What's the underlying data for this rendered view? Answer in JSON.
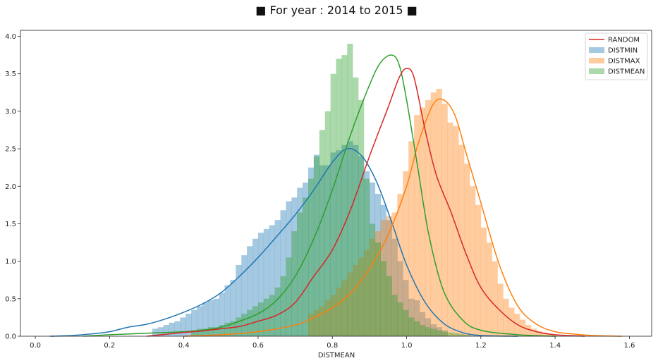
{
  "chart_data": {
    "type": "histogram",
    "title": "■ For year : 2014 to 2015 ■",
    "xlabel": "DISTMEAN",
    "ylabel": "",
    "xlim": [
      -0.04,
      1.66
    ],
    "ylim": [
      0,
      4.08
    ],
    "grid": false,
    "legend_position": "top-right",
    "x_ticks": [
      0.0,
      0.2,
      0.4,
      0.6,
      0.8,
      1.0,
      1.2,
      1.4,
      1.6
    ],
    "x_tick_labels": [
      "0.0",
      "0.2",
      "0.4",
      "0.6",
      "0.8",
      "1.0",
      "1.2",
      "1.4",
      "1.6"
    ],
    "y_ticks": [
      0.0,
      0.5,
      1.0,
      1.5,
      2.0,
      2.5,
      3.0,
      3.5,
      4.0
    ],
    "y_tick_labels": [
      "0.0",
      "0.5",
      "1.0",
      "1.5",
      "2.0",
      "2.5",
      "3.0",
      "3.5",
      "4.0"
    ],
    "legend": [
      {
        "label": "RANDOM",
        "kind": "line"
      },
      {
        "label": "DISTMIN",
        "kind": "patch"
      },
      {
        "label": "DISTMAX",
        "kind": "patch"
      },
      {
        "label": "DISTMEAN",
        "kind": "patch"
      }
    ],
    "series": [
      {
        "name": "DISTMIN",
        "color": "#1f77b4",
        "hist": {
          "edges": [
            0.315,
            0.33,
            0.345,
            0.36,
            0.375,
            0.39,
            0.405,
            0.42,
            0.435,
            0.45,
            0.465,
            0.48,
            0.495,
            0.51,
            0.525,
            0.54,
            0.555,
            0.57,
            0.585,
            0.6,
            0.615,
            0.63,
            0.645,
            0.66,
            0.675,
            0.69,
            0.705,
            0.72,
            0.735,
            0.75,
            0.765,
            0.78,
            0.795,
            0.81,
            0.825,
            0.84,
            0.855,
            0.87,
            0.885,
            0.9,
            0.915,
            0.93,
            0.945,
            0.96,
            0.975,
            0.99,
            1.005,
            1.02,
            1.035,
            1.05,
            1.065,
            1.08,
            1.095,
            1.11
          ],
          "values": [
            0.1,
            0.12,
            0.15,
            0.18,
            0.2,
            0.25,
            0.3,
            0.35,
            0.4,
            0.45,
            0.48,
            0.5,
            0.58,
            0.68,
            0.75,
            0.95,
            1.08,
            1.2,
            1.3,
            1.38,
            1.43,
            1.48,
            1.55,
            1.68,
            1.8,
            1.85,
            1.98,
            2.05,
            2.25,
            2.42,
            2.28,
            2.28,
            2.45,
            2.48,
            2.55,
            2.6,
            2.55,
            2.4,
            2.2,
            2.05,
            1.9,
            1.75,
            1.55,
            1.3,
            1.0,
            0.75,
            0.5,
            0.48,
            0.32,
            0.24,
            0.16,
            0.12,
            0.08
          ]
        },
        "kde": {
          "x": [
            0.04,
            0.1,
            0.15,
            0.2,
            0.25,
            0.3,
            0.35,
            0.4,
            0.45,
            0.5,
            0.55,
            0.6,
            0.65,
            0.7,
            0.75,
            0.8,
            0.84,
            0.88,
            0.92,
            0.96,
            1.0,
            1.05,
            1.1,
            1.15,
            1.2,
            1.3
          ],
          "y": [
            0.0,
            0.01,
            0.03,
            0.06,
            0.12,
            0.16,
            0.23,
            0.32,
            0.43,
            0.58,
            0.8,
            1.05,
            1.33,
            1.62,
            1.95,
            2.32,
            2.5,
            2.4,
            2.05,
            1.52,
            0.95,
            0.45,
            0.17,
            0.05,
            0.01,
            0.0
          ]
        }
      },
      {
        "name": "DISTMAX",
        "color": "#ff7f0e",
        "hist": {
          "edges": [
            0.735,
            0.75,
            0.765,
            0.78,
            0.795,
            0.81,
            0.825,
            0.84,
            0.855,
            0.87,
            0.885,
            0.9,
            0.915,
            0.93,
            0.945,
            0.96,
            0.975,
            0.99,
            1.005,
            1.02,
            1.035,
            1.05,
            1.065,
            1.08,
            1.095,
            1.11,
            1.125,
            1.14,
            1.155,
            1.17,
            1.185,
            1.2,
            1.215,
            1.23,
            1.245,
            1.26,
            1.275,
            1.29,
            1.305,
            1.32,
            1.335,
            1.35,
            1.365,
            1.38,
            1.395,
            1.41
          ],
          "values": [
            0.3,
            0.35,
            0.4,
            0.48,
            0.55,
            0.65,
            0.75,
            0.85,
            0.95,
            1.05,
            1.15,
            1.3,
            1.4,
            1.55,
            1.6,
            1.65,
            1.9,
            2.2,
            2.6,
            2.95,
            3.05,
            3.15,
            3.25,
            3.3,
            3.1,
            2.85,
            2.8,
            2.55,
            2.3,
            2.0,
            1.75,
            1.45,
            1.25,
            1.0,
            0.7,
            0.5,
            0.38,
            0.3,
            0.22,
            0.15,
            0.1,
            0.07,
            0.05,
            0.03,
            0.02
          ]
        },
        "kde": {
          "x": [
            0.4,
            0.5,
            0.6,
            0.7,
            0.75,
            0.8,
            0.85,
            0.9,
            0.95,
            1.0,
            1.03,
            1.07,
            1.1,
            1.13,
            1.16,
            1.2,
            1.25,
            1.3,
            1.35,
            1.4,
            1.45,
            1.5,
            1.58
          ],
          "y": [
            0.0,
            0.02,
            0.06,
            0.15,
            0.25,
            0.38,
            0.58,
            0.9,
            1.35,
            2.0,
            2.55,
            3.08,
            3.15,
            2.95,
            2.45,
            1.78,
            0.95,
            0.4,
            0.16,
            0.06,
            0.03,
            0.01,
            0.0
          ]
        }
      },
      {
        "name": "DISTMEAN",
        "color": "#2ca02c",
        "hist": {
          "edges": [
            0.42,
            0.435,
            0.45,
            0.465,
            0.48,
            0.495,
            0.51,
            0.525,
            0.54,
            0.555,
            0.57,
            0.585,
            0.6,
            0.615,
            0.63,
            0.645,
            0.66,
            0.675,
            0.69,
            0.705,
            0.72,
            0.735,
            0.75,
            0.765,
            0.78,
            0.795,
            0.81,
            0.825,
            0.84,
            0.855,
            0.87,
            0.885,
            0.9,
            0.915,
            0.93,
            0.945,
            0.96,
            0.975,
            0.99,
            1.005,
            1.02,
            1.035,
            1.05,
            1.065,
            1.08,
            1.095,
            1.11,
            1.125,
            1.14,
            1.155,
            1.17
          ],
          "values": [
            0.08,
            0.1,
            0.1,
            0.12,
            0.12,
            0.15,
            0.18,
            0.2,
            0.25,
            0.3,
            0.35,
            0.4,
            0.45,
            0.5,
            0.55,
            0.65,
            0.8,
            1.05,
            1.4,
            1.65,
            1.85,
            2.1,
            2.4,
            2.75,
            3.0,
            3.5,
            3.7,
            3.75,
            3.9,
            3.45,
            3.15,
            2.1,
            1.5,
            1.25,
            1.0,
            0.8,
            0.55,
            0.45,
            0.35,
            0.25,
            0.2,
            0.15,
            0.12,
            0.1,
            0.08,
            0.06,
            0.05,
            0.04,
            0.03,
            0.02
          ]
        },
        "kde": {
          "x": [
            0.13,
            0.2,
            0.3,
            0.4,
            0.45,
            0.5,
            0.55,
            0.6,
            0.65,
            0.7,
            0.75,
            0.8,
            0.85,
            0.9,
            0.93,
            0.96,
            0.98,
            1.0,
            1.03,
            1.06,
            1.1,
            1.15,
            1.2,
            1.3,
            1.4
          ],
          "y": [
            0.0,
            0.02,
            0.04,
            0.06,
            0.08,
            0.12,
            0.2,
            0.3,
            0.48,
            0.8,
            1.3,
            1.95,
            2.7,
            3.35,
            3.65,
            3.75,
            3.62,
            3.15,
            2.25,
            1.35,
            0.6,
            0.22,
            0.08,
            0.02,
            0.0
          ]
        }
      },
      {
        "name": "RANDOM",
        "color": "#d62728",
        "kde": {
          "x": [
            0.3,
            0.4,
            0.45,
            0.5,
            0.55,
            0.6,
            0.65,
            0.7,
            0.75,
            0.8,
            0.85,
            0.9,
            0.95,
            0.98,
            1.0,
            1.02,
            1.05,
            1.08,
            1.12,
            1.16,
            1.2,
            1.25,
            1.3,
            1.35,
            1.4,
            1.48
          ],
          "y": [
            0.0,
            0.05,
            0.07,
            0.1,
            0.13,
            0.2,
            0.28,
            0.45,
            0.8,
            1.15,
            1.7,
            2.4,
            3.05,
            3.45,
            3.57,
            3.45,
            2.75,
            2.15,
            1.65,
            1.1,
            0.65,
            0.35,
            0.15,
            0.06,
            0.02,
            0.0
          ]
        }
      }
    ]
  }
}
